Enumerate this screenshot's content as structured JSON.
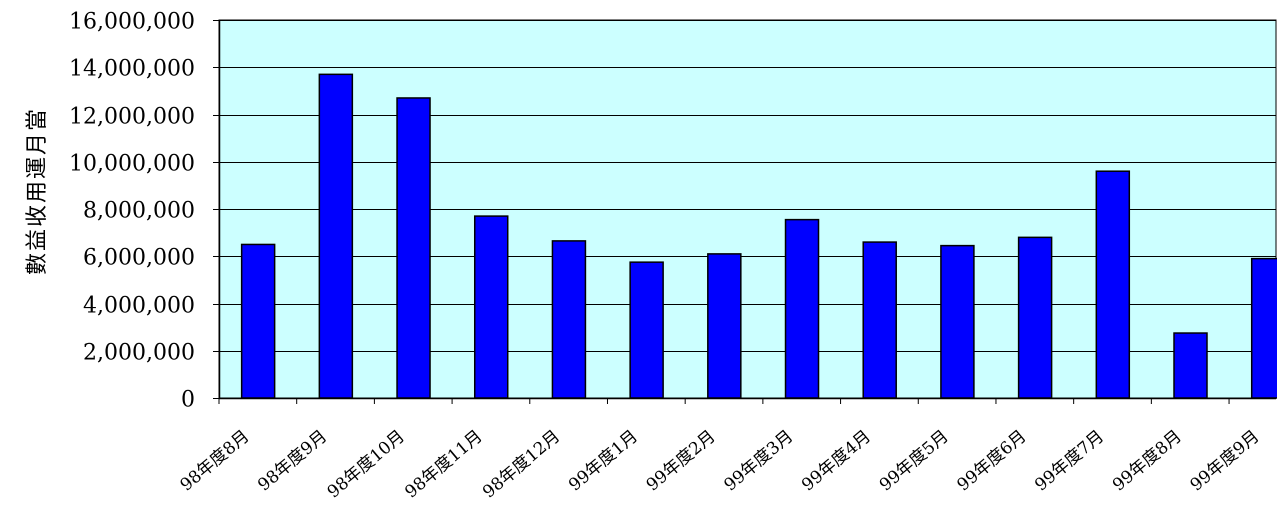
{
  "chart_data": {
    "type": "bar",
    "title": "",
    "xlabel": "",
    "ylabel": "當月運用收益數",
    "ylim": [
      0,
      16000000
    ],
    "yticks": [
      0,
      2000000,
      4000000,
      6000000,
      8000000,
      10000000,
      12000000,
      14000000,
      16000000
    ],
    "ytick_labels": [
      "0",
      "2,000,000",
      "4,000,000",
      "6,000,000",
      "8,000,000",
      "10,000,000",
      "12,000,000",
      "14,000,000",
      "16,000,000"
    ],
    "grid": true,
    "legend": "none",
    "colors": {
      "plot_bg": "#ccffff",
      "bar": "#0000ff",
      "bar_edge": "#000000"
    },
    "categories": [
      "98年度8月",
      "98年度9月",
      "98年度10月",
      "98年度11月",
      "98年度12月",
      "99年度1月",
      "99年度2月",
      "99年度3月",
      "99年度4月",
      "99年度5月",
      "99年度6月",
      "99年度7月",
      "99年度8月",
      "99年度9月"
    ],
    "values": [
      6500000,
      13700000,
      12700000,
      7700000,
      6650000,
      5750000,
      6100000,
      7550000,
      6600000,
      6450000,
      6800000,
      9600000,
      2750000,
      5900000
    ]
  }
}
